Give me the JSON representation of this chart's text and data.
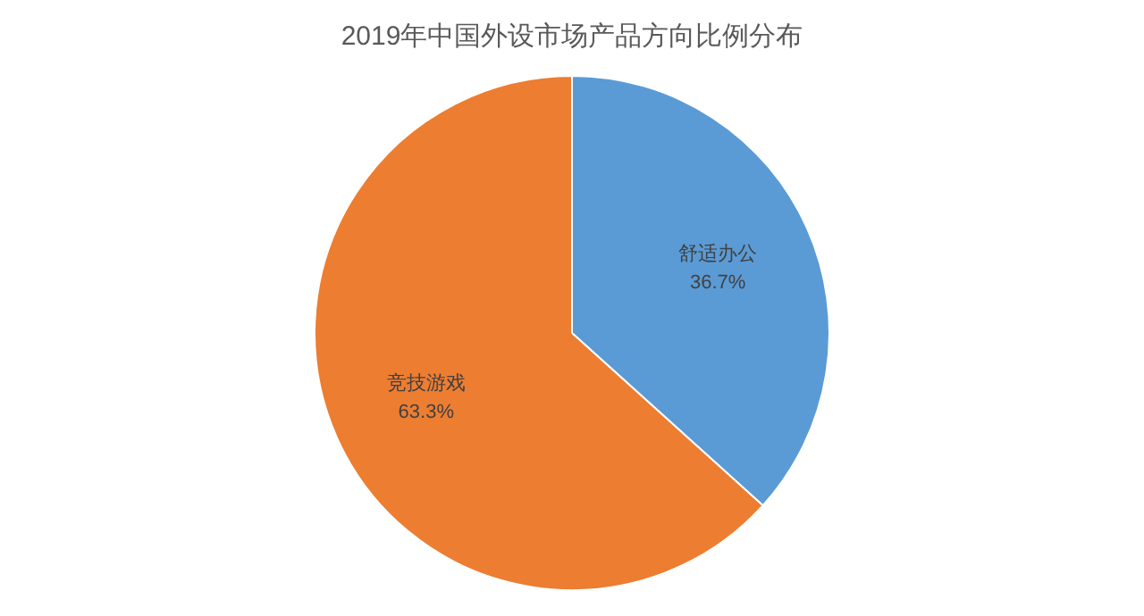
{
  "chart_data": {
    "type": "pie",
    "title": "2019年中国外设市场产品方向比例分布",
    "categories": [
      "舒适办公",
      "竞技游戏"
    ],
    "values": [
      36.7,
      63.3
    ],
    "colors": [
      "#5b9bd5",
      "#ed7d31"
    ],
    "value_labels": [
      "36.7%",
      "63.3%"
    ],
    "legend": false
  }
}
